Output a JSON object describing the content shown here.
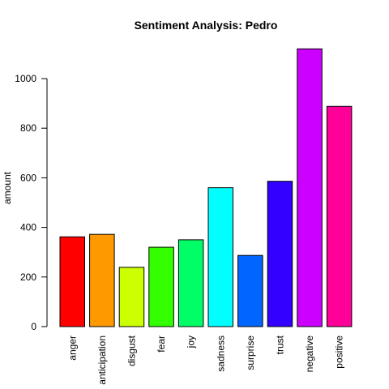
{
  "chart_data": {
    "type": "bar",
    "title": "Sentiment Analysis: Pedro",
    "xlabel": "",
    "ylabel": "amount",
    "ylim": [
      0,
      1120
    ],
    "yticks": [
      0,
      200,
      400,
      600,
      800,
      1000
    ],
    "grid": false,
    "categories": [
      "anger",
      "anticipation",
      "disgust",
      "fear",
      "joy",
      "sadness",
      "surprise",
      "trust",
      "negative",
      "positive"
    ],
    "values": [
      362,
      372,
      239,
      320,
      350,
      560,
      287,
      586,
      1120,
      888
    ],
    "colors": [
      "#FF0000",
      "#FF9900",
      "#CCFF00",
      "#33FF00",
      "#00FF66",
      "#00FFFF",
      "#0066FF",
      "#3300FF",
      "#CC00FF",
      "#FF0099"
    ]
  }
}
